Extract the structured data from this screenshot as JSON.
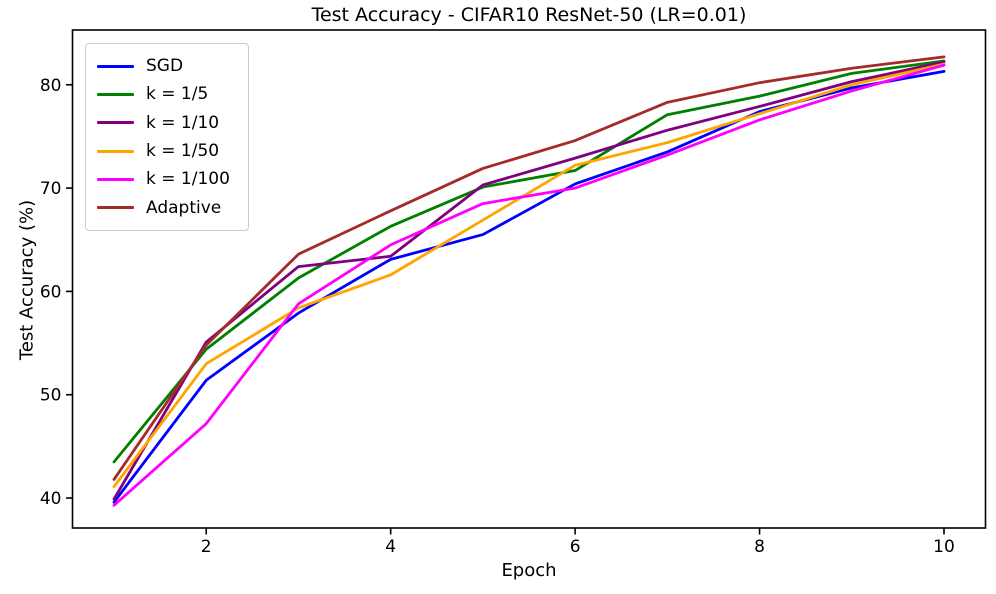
{
  "chart_data": {
    "type": "line",
    "title": "Test Accuracy - CIFAR10 ResNet-50 (LR=0.01)",
    "xlabel": "Epoch",
    "ylabel": "Test Accuracy (%)",
    "x": [
      1,
      2,
      3,
      4,
      5,
      6,
      7,
      8,
      9,
      10
    ],
    "xlim": [
      0.55,
      10.45
    ],
    "ylim": [
      37.1,
      85.3
    ],
    "xticks": [
      "2",
      "4",
      "6",
      "8",
      "10"
    ],
    "xtick_values": [
      2,
      4,
      6,
      8,
      10
    ],
    "yticks": [
      "40",
      "50",
      "60",
      "70",
      "80"
    ],
    "ytick_values": [
      40,
      50,
      60,
      70,
      80
    ],
    "grid": false,
    "legend_position": "upper left",
    "axis_color": "#000000",
    "legend_border_color": "#cccccc",
    "series": [
      {
        "name": "SGD",
        "color": "#0000ff",
        "values": [
          39.6,
          51.4,
          57.9,
          63.1,
          65.5,
          70.4,
          73.5,
          77.4,
          79.7,
          81.3
        ]
      },
      {
        "name": "k = 1/5",
        "color": "#008000",
        "values": [
          43.5,
          54.4,
          61.3,
          66.3,
          70.1,
          71.7,
          77.1,
          78.9,
          81.1,
          82.3
        ]
      },
      {
        "name": "k = 1/10",
        "color": "#800080",
        "values": [
          39.9,
          55.1,
          62.4,
          63.4,
          70.3,
          72.9,
          75.6,
          77.9,
          80.3,
          82.2
        ]
      },
      {
        "name": "k = 1/50",
        "color": "#ffa500",
        "values": [
          41.1,
          53.0,
          58.4,
          61.6,
          66.9,
          72.2,
          74.4,
          77.2,
          80.0,
          82.0
        ]
      },
      {
        "name": "k = 1/100",
        "color": "#ff00ff",
        "values": [
          39.3,
          47.2,
          58.8,
          64.5,
          68.5,
          70.0,
          73.2,
          76.6,
          79.4,
          81.9
        ]
      },
      {
        "name": "Adaptive",
        "color": "#a52a2a",
        "values": [
          41.8,
          54.8,
          63.6,
          67.8,
          71.9,
          74.6,
          78.3,
          80.2,
          81.6,
          82.7
        ]
      }
    ]
  }
}
